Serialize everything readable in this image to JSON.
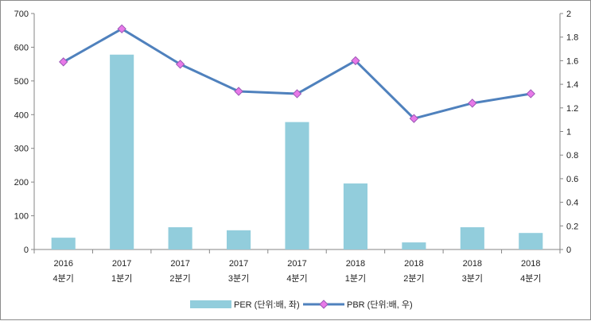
{
  "chart_data": {
    "type": "bar-line",
    "categories": [
      [
        "2016",
        "4분기"
      ],
      [
        "2017",
        "1분기"
      ],
      [
        "2017",
        "2분기"
      ],
      [
        "2017",
        "3분기"
      ],
      [
        "2017",
        "4분기"
      ],
      [
        "2018",
        "1분기"
      ],
      [
        "2018",
        "2분기"
      ],
      [
        "2018",
        "3분기"
      ],
      [
        "2018",
        "4분기"
      ]
    ],
    "series": [
      {
        "name": "PER (단위:배, 좌)",
        "type": "bar",
        "axis": "left",
        "color": "#92cddc",
        "values": [
          35,
          578,
          66,
          57,
          378,
          196,
          21,
          66,
          49
        ]
      },
      {
        "name": "PBR (단위:배, 우)",
        "type": "line",
        "axis": "right",
        "color": "#4f81bd",
        "marker_color": "#e879e8",
        "values": [
          1.59,
          1.87,
          1.57,
          1.34,
          1.32,
          1.6,
          1.11,
          1.24,
          1.32
        ]
      }
    ],
    "y_left": {
      "ylim": [
        0,
        700
      ],
      "ticks": [
        "0",
        "100",
        "200",
        "300",
        "400",
        "500",
        "600",
        "700"
      ]
    },
    "y_right": {
      "ylim": [
        0,
        2
      ],
      "ticks": [
        "0",
        "0.2",
        "0.4",
        "0.6",
        "0.8",
        "1",
        "1.2",
        "1.4",
        "1.6",
        "1.8",
        "2"
      ]
    },
    "legend_position": "bottom",
    "grid": false
  }
}
